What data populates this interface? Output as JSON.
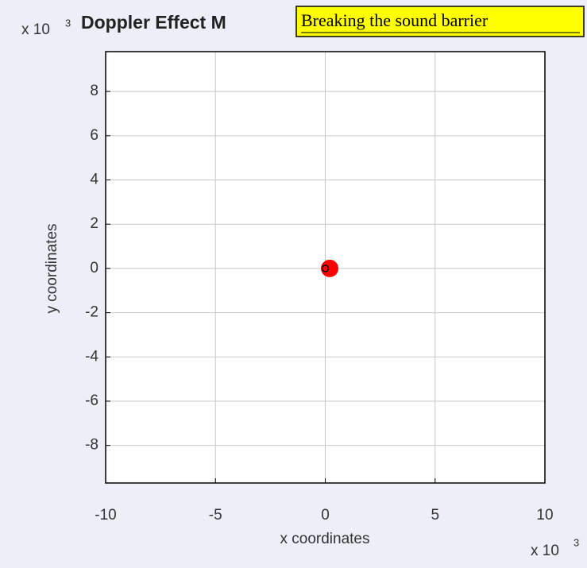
{
  "chart_data": {
    "type": "scatter",
    "title": "Doppler Effect M",
    "annotation": "Breaking the sound barrier",
    "xlabel": "x coordinates",
    "ylabel": "y coordinates",
    "x_scale": {
      "base": "x 10",
      "exponent": "3"
    },
    "y_scale": {
      "base": "x 10",
      "exponent": "3"
    },
    "xlim": [
      -10,
      10
    ],
    "ylim": [
      -9.7,
      9.8
    ],
    "xticks": [
      -10,
      -5,
      0,
      5,
      10
    ],
    "yticks": [
      -8,
      -6,
      -4,
      -2,
      0,
      2,
      4,
      6,
      8
    ],
    "grid": true,
    "series": [
      {
        "color": "#ff0000",
        "x": [
          0.2
        ],
        "values": [
          0
        ]
      },
      {
        "color": "#000000",
        "x": [
          0
        ],
        "values": [
          0
        ]
      }
    ]
  }
}
